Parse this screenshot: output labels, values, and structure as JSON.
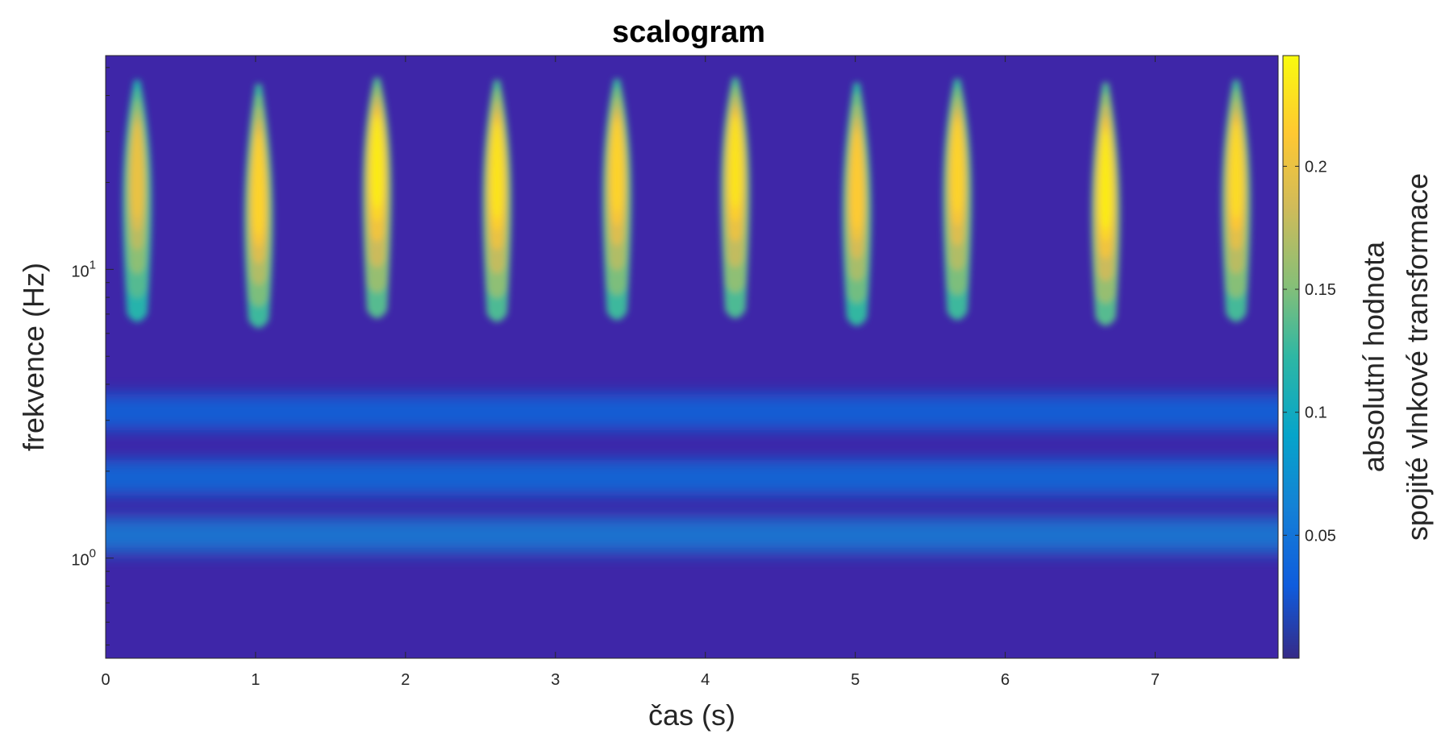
{
  "chart_data": {
    "type": "heatmap",
    "title": "scalogram",
    "xlabel": "čas (s)",
    "ylabel": "frekvence (Hz)",
    "x_ticks": [
      0,
      1,
      2,
      3,
      4,
      5,
      6,
      7
    ],
    "xlim": [
      0,
      7.82
    ],
    "y_scale": "log",
    "y_ticks": [
      {
        "value": 1,
        "base": "10",
        "exp": "0"
      },
      {
        "value": 10,
        "base": "10",
        "exp": "1"
      }
    ],
    "ylim": [
      0.45,
      55
    ],
    "colormap": "parula",
    "colorbar": {
      "label_line1": "absolutní hodnota",
      "label_line2": "spojité vlnkové transformace",
      "ticks": [
        "0.05",
        "0.1",
        "0.15",
        "0.2"
      ],
      "tick_values": [
        0.05,
        0.1,
        0.15,
        0.2
      ],
      "range": [
        0,
        0.245
      ]
    },
    "peaks": [
      {
        "time": 0.21,
        "peak_freq": 20,
        "magnitude": 0.2
      },
      {
        "time": 1.02,
        "peak_freq": 17,
        "magnitude": 0.22
      },
      {
        "time": 1.81,
        "peak_freq": 22,
        "magnitude": 0.235
      },
      {
        "time": 2.61,
        "peak_freq": 20,
        "magnitude": 0.23
      },
      {
        "time": 3.41,
        "peak_freq": 21,
        "magnitude": 0.22
      },
      {
        "time": 4.2,
        "peak_freq": 22,
        "magnitude": 0.23
      },
      {
        "time": 5.01,
        "peak_freq": 18,
        "magnitude": 0.215
      },
      {
        "time": 5.68,
        "peak_freq": 21,
        "magnitude": 0.22
      },
      {
        "time": 6.67,
        "peak_freq": 18,
        "magnitude": 0.235
      },
      {
        "time": 7.54,
        "peak_freq": 20,
        "magnitude": 0.225
      }
    ],
    "bands": [
      {
        "freq": 1.2,
        "magnitude": 0.06
      },
      {
        "freq": 1.9,
        "magnitude": 0.045
      },
      {
        "freq": 3.2,
        "magnitude": 0.04
      }
    ],
    "colors": {
      "background": "#3e26a8",
      "low": "#352a87",
      "mid": "#0fb0c9",
      "high": "#f9fb0e"
    }
  }
}
